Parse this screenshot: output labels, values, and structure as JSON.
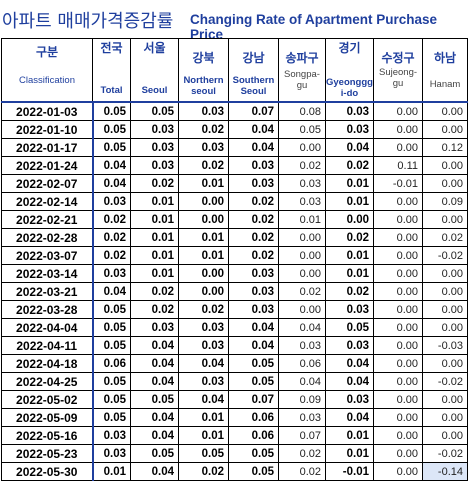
{
  "title": {
    "korean": "아파트 매매가격증감률",
    "english": "Changing Rate of Apartment Purchase Price"
  },
  "columns": [
    {
      "key": "date",
      "ko": "구분",
      "en": "Classification"
    },
    {
      "key": "total",
      "ko": "전국",
      "en": "Total"
    },
    {
      "key": "seoul",
      "ko": "서울",
      "en": "Seoul"
    },
    {
      "key": "gangbuk",
      "ko": "강북",
      "en": "Northern seoul"
    },
    {
      "key": "gangnam",
      "ko": "강남",
      "en": "Southern Seoul"
    },
    {
      "key": "songpa",
      "ko": "송파구",
      "en": "Songpa-gu"
    },
    {
      "key": "gyeonggi",
      "ko": "경기",
      "en": "Gyeonggi-do"
    },
    {
      "key": "sujeong",
      "ko": "수정구",
      "en": "Sujeong-gu"
    },
    {
      "key": "hanam",
      "ko": "하남",
      "en": "Hanam"
    }
  ],
  "header_lines": {
    "gangbuk_en_1": "Northern",
    "gangbuk_en_2": "seoul",
    "gangnam_en_1": "Southern",
    "gangnam_en_2": "Seoul",
    "songpa_en_1": "Songpa-",
    "songpa_en_2": "gu",
    "gyeonggi_en_1": "Gyeonggg",
    "gyeonggi_en_2": "i-do",
    "sujeong_en_1": "Sujeong-",
    "sujeong_en_2": "gu"
  },
  "rows": [
    [
      "2022-01-03",
      "0.05",
      "0.05",
      "0.03",
      "0.07",
      "0.08",
      "0.03",
      "0.00",
      "0.00"
    ],
    [
      "2022-01-10",
      "0.05",
      "0.03",
      "0.02",
      "0.04",
      "0.05",
      "0.03",
      "0.00",
      "0.00"
    ],
    [
      "2022-01-17",
      "0.05",
      "0.03",
      "0.03",
      "0.04",
      "0.00",
      "0.04",
      "0.00",
      "0.12"
    ],
    [
      "2022-01-24",
      "0.04",
      "0.03",
      "0.02",
      "0.03",
      "0.02",
      "0.02",
      "0.11",
      "0.00"
    ],
    [
      "2022-02-07",
      "0.04",
      "0.02",
      "0.01",
      "0.03",
      "0.03",
      "0.01",
      "-0.01",
      "0.00"
    ],
    [
      "2022-02-14",
      "0.03",
      "0.01",
      "0.00",
      "0.02",
      "0.03",
      "0.01",
      "0.00",
      "0.09"
    ],
    [
      "2022-02-21",
      "0.02",
      "0.01",
      "0.00",
      "0.02",
      "0.01",
      "0.00",
      "0.00",
      "0.00"
    ],
    [
      "2022-02-28",
      "0.02",
      "0.01",
      "0.01",
      "0.02",
      "0.00",
      "0.02",
      "0.00",
      "0.02"
    ],
    [
      "2022-03-07",
      "0.02",
      "0.01",
      "0.01",
      "0.02",
      "0.00",
      "0.01",
      "0.00",
      "-0.02"
    ],
    [
      "2022-03-14",
      "0.03",
      "0.01",
      "0.00",
      "0.03",
      "0.00",
      "0.01",
      "0.00",
      "0.00"
    ],
    [
      "2022-03-21",
      "0.04",
      "0.02",
      "0.00",
      "0.03",
      "0.02",
      "0.02",
      "0.00",
      "0.00"
    ],
    [
      "2022-03-28",
      "0.05",
      "0.02",
      "0.02",
      "0.03",
      "0.00",
      "0.03",
      "0.00",
      "0.00"
    ],
    [
      "2022-04-04",
      "0.05",
      "0.03",
      "0.03",
      "0.04",
      "0.04",
      "0.05",
      "0.00",
      "0.00"
    ],
    [
      "2022-04-11",
      "0.05",
      "0.04",
      "0.03",
      "0.04",
      "0.03",
      "0.03",
      "0.00",
      "-0.03"
    ],
    [
      "2022-04-18",
      "0.06",
      "0.04",
      "0.04",
      "0.05",
      "0.06",
      "0.04",
      "0.00",
      "0.00"
    ],
    [
      "2022-04-25",
      "0.05",
      "0.04",
      "0.03",
      "0.05",
      "0.04",
      "0.04",
      "0.00",
      "-0.02"
    ],
    [
      "2022-05-02",
      "0.05",
      "0.05",
      "0.04",
      "0.07",
      "0.09",
      "0.03",
      "0.00",
      "0.00"
    ],
    [
      "2022-05-09",
      "0.05",
      "0.04",
      "0.01",
      "0.06",
      "0.03",
      "0.04",
      "0.00",
      "0.00"
    ],
    [
      "2022-05-16",
      "0.03",
      "0.04",
      "0.01",
      "0.06",
      "0.07",
      "0.01",
      "0.00",
      "0.00"
    ],
    [
      "2022-05-23",
      "0.03",
      "0.05",
      "0.05",
      "0.05",
      "0.02",
      "0.01",
      "0.00",
      "-0.02"
    ],
    [
      "2022-05-30",
      "0.01",
      "0.04",
      "0.02",
      "0.05",
      "0.02",
      "-0.01",
      "0.00",
      "-0.14"
    ]
  ],
  "highlight_color": "#dce6f7",
  "accent_color": "#1f3f9e"
}
